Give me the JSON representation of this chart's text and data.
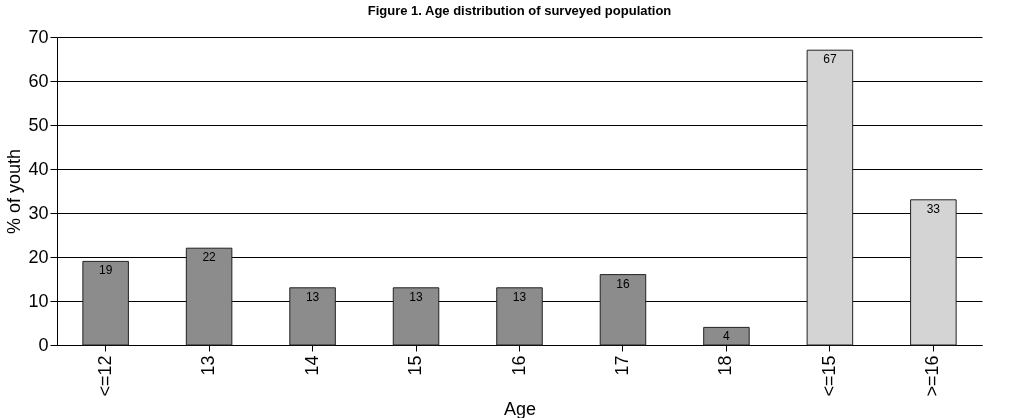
{
  "chart_data": {
    "type": "bar",
    "title": "Figure 1. Age distribution of surveyed population",
    "xlabel": "Age",
    "ylabel": "% of youth",
    "categories": [
      "<=12",
      "13",
      "14",
      "15",
      "16",
      "17",
      "18",
      "<=15",
      ">=16"
    ],
    "values": [
      19,
      22,
      13,
      13,
      13,
      16,
      4,
      67,
      33
    ],
    "colors": [
      "#8c8c8c",
      "#8c8c8c",
      "#8c8c8c",
      "#8c8c8c",
      "#8c8c8c",
      "#8c8c8c",
      "#8c8c8c",
      "#d4d4d4",
      "#d4d4d4"
    ],
    "ylim": [
      0,
      70
    ],
    "yticks": [
      0,
      10,
      20,
      30,
      40,
      50,
      60,
      70
    ],
    "grid": "y",
    "data_labels": true
  }
}
